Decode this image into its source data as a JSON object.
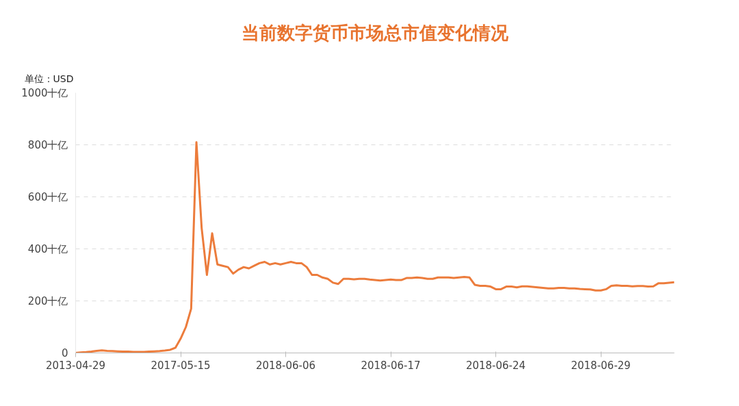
{
  "chart_data": {
    "type": "line",
    "title": "当前数字货币市场总市值变化情况",
    "ylabel": "单位：USD",
    "categories": [
      "2013-04-29",
      null,
      null,
      null,
      null,
      null,
      null,
      null,
      null,
      null,
      null,
      null,
      null,
      null,
      null,
      null,
      null,
      null,
      null,
      null,
      "2017-05-15",
      null,
      null,
      null,
      null,
      null,
      null,
      null,
      null,
      null,
      null,
      null,
      null,
      null,
      null,
      null,
      null,
      null,
      null,
      null,
      "2018-06-06",
      null,
      null,
      null,
      null,
      null,
      null,
      null,
      null,
      null,
      null,
      null,
      null,
      null,
      null,
      null,
      null,
      null,
      null,
      null,
      "2018-06-17",
      null,
      null,
      null,
      null,
      null,
      null,
      null,
      null,
      null,
      null,
      null,
      null,
      null,
      null,
      null,
      null,
      null,
      null,
      null,
      "2018-06-24",
      null,
      null,
      null,
      null,
      null,
      null,
      null,
      null,
      null,
      null,
      null,
      null,
      null,
      null,
      null,
      null,
      null,
      null,
      null,
      "2018-06-29",
      null,
      null,
      null,
      null,
      null,
      null,
      null,
      null,
      null,
      null,
      null,
      null,
      null,
      null
    ],
    "series": [
      {
        "color": "#ec7c3c",
        "values": [
          0,
          2,
          3,
          5,
          8,
          10,
          8,
          7,
          6,
          5,
          5,
          4,
          4,
          4,
          5,
          6,
          7,
          9,
          12,
          20,
          55,
          100,
          170,
          810,
          480,
          300,
          460,
          340,
          335,
          330,
          305,
          320,
          330,
          325,
          335,
          345,
          350,
          340,
          345,
          340,
          345,
          350,
          345,
          345,
          330,
          300,
          300,
          290,
          285,
          270,
          265,
          285,
          285,
          283,
          285,
          285,
          282,
          280,
          278,
          280,
          282,
          280,
          280,
          288,
          288,
          290,
          288,
          285,
          285,
          290,
          290,
          290,
          288,
          290,
          292,
          290,
          262,
          258,
          258,
          255,
          245,
          245,
          255,
          255,
          252,
          256,
          256,
          254,
          252,
          250,
          248,
          248,
          250,
          250,
          248,
          248,
          246,
          245,
          244,
          240,
          240,
          245,
          258,
          260,
          258,
          258,
          256,
          257,
          257,
          255,
          256,
          268,
          268,
          270,
          272
        ]
      }
    ],
    "ylim": [
      0,
      1000
    ],
    "yticks": [
      0,
      {
        "value": 200,
        "label": "200十亿"
      },
      {
        "value": 400,
        "label": "400十亿"
      },
      {
        "value": 600,
        "label": "600十亿"
      },
      {
        "value": 800,
        "label": "800十亿"
      },
      {
        "value": 1000,
        "label": "1000十亿"
      }
    ],
    "grid": "y",
    "line_style": "solid"
  }
}
